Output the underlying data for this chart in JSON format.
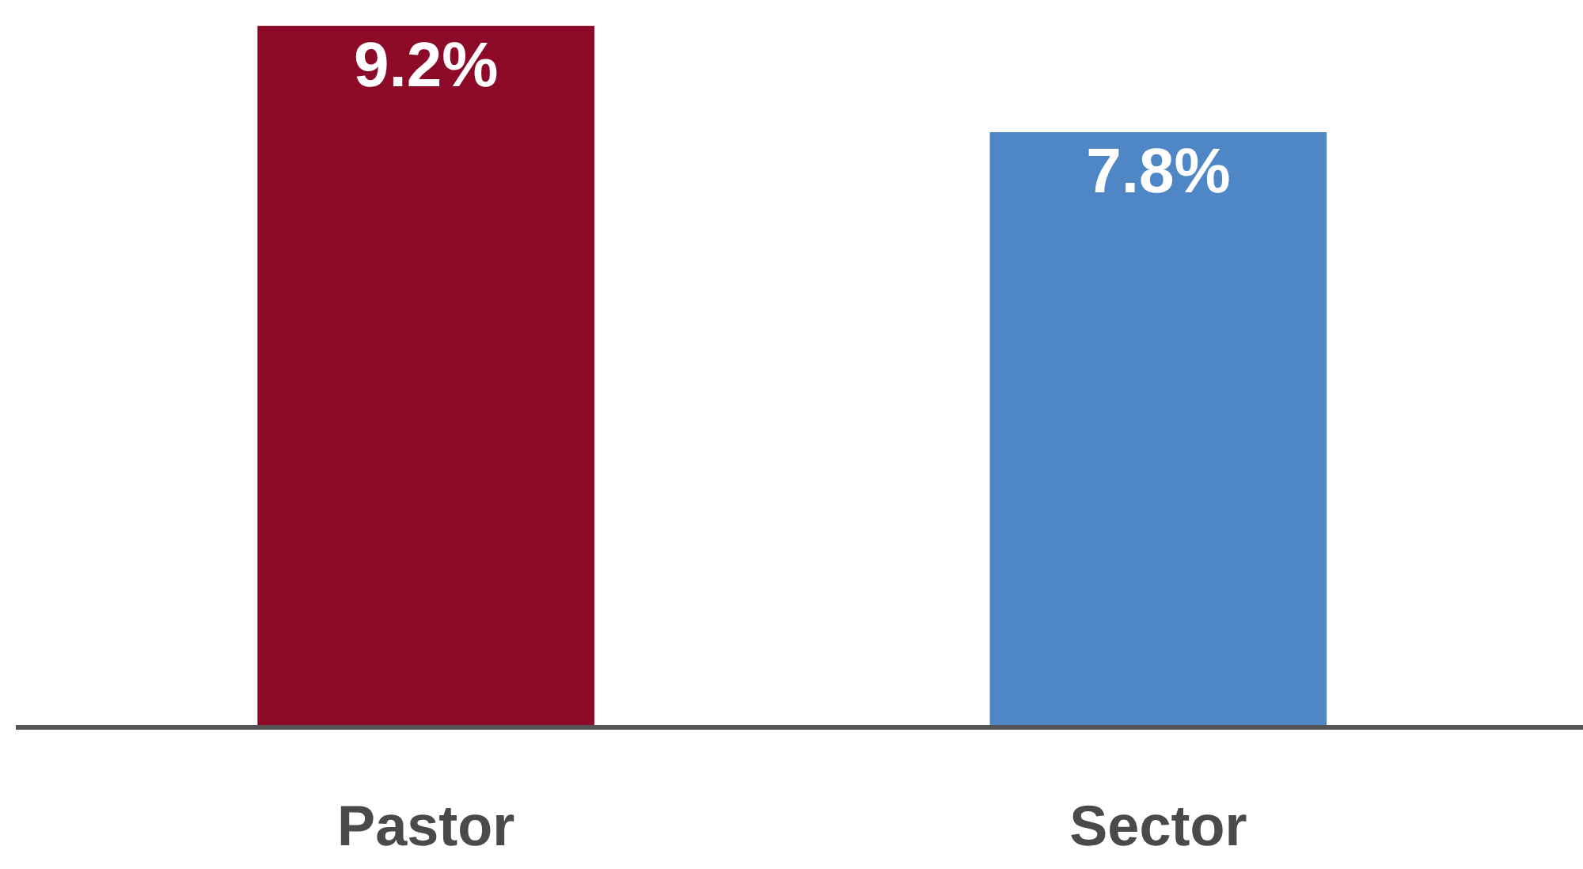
{
  "chart_data": {
    "type": "bar",
    "categories": [
      "Pastor",
      "Sector"
    ],
    "values": [
      9.2,
      7.8
    ],
    "colors": [
      "#8c0a28",
      "#4f86c6"
    ],
    "value_labels": [
      "9.2%",
      "7.8%"
    ]
  }
}
